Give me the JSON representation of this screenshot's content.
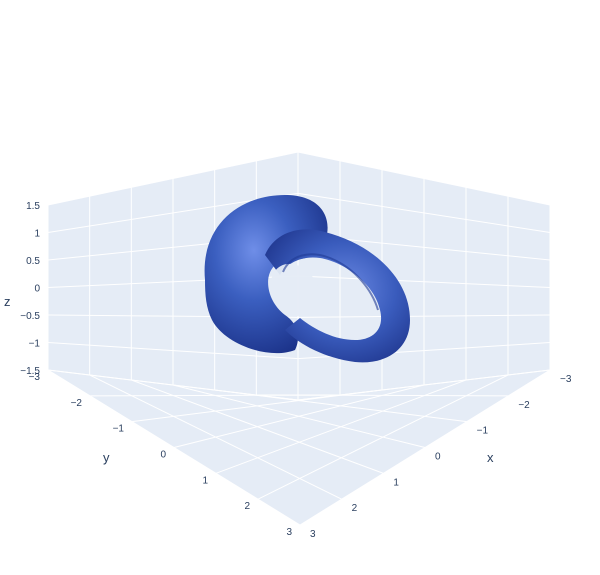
{
  "chart_data": {
    "type": "surface",
    "description_type": "3d-surface",
    "surfaces": [
      {
        "kind": "torus",
        "center": [
          0,
          -0.5,
          0
        ],
        "major_radius": 1,
        "minor_radius": 0.35,
        "plane": "xy"
      },
      {
        "kind": "torus",
        "center": [
          0,
          0.5,
          0
        ],
        "major_radius": 1,
        "minor_radius": 0.35,
        "plane": "yz"
      }
    ],
    "surface_color": "#3b5fc0",
    "axes": {
      "x": {
        "title": "x",
        "range": [
          -3,
          3
        ],
        "ticks": [
          "−3",
          "−2",
          "−1",
          "0",
          "1",
          "2",
          "3"
        ]
      },
      "y": {
        "title": "y",
        "range": [
          -3,
          3
        ],
        "ticks": [
          "−3",
          "−2",
          "−1",
          "0",
          "1",
          "2",
          "3"
        ]
      },
      "z": {
        "title": "z",
        "range": [
          -1.5,
          1.5
        ],
        "ticks": [
          "−1.5",
          "−1",
          "−0.5",
          "0",
          "0.5",
          "1",
          "1.5"
        ]
      }
    },
    "grid": true,
    "pane_color": "#e5ecf6",
    "grid_color": "#ffffff"
  }
}
